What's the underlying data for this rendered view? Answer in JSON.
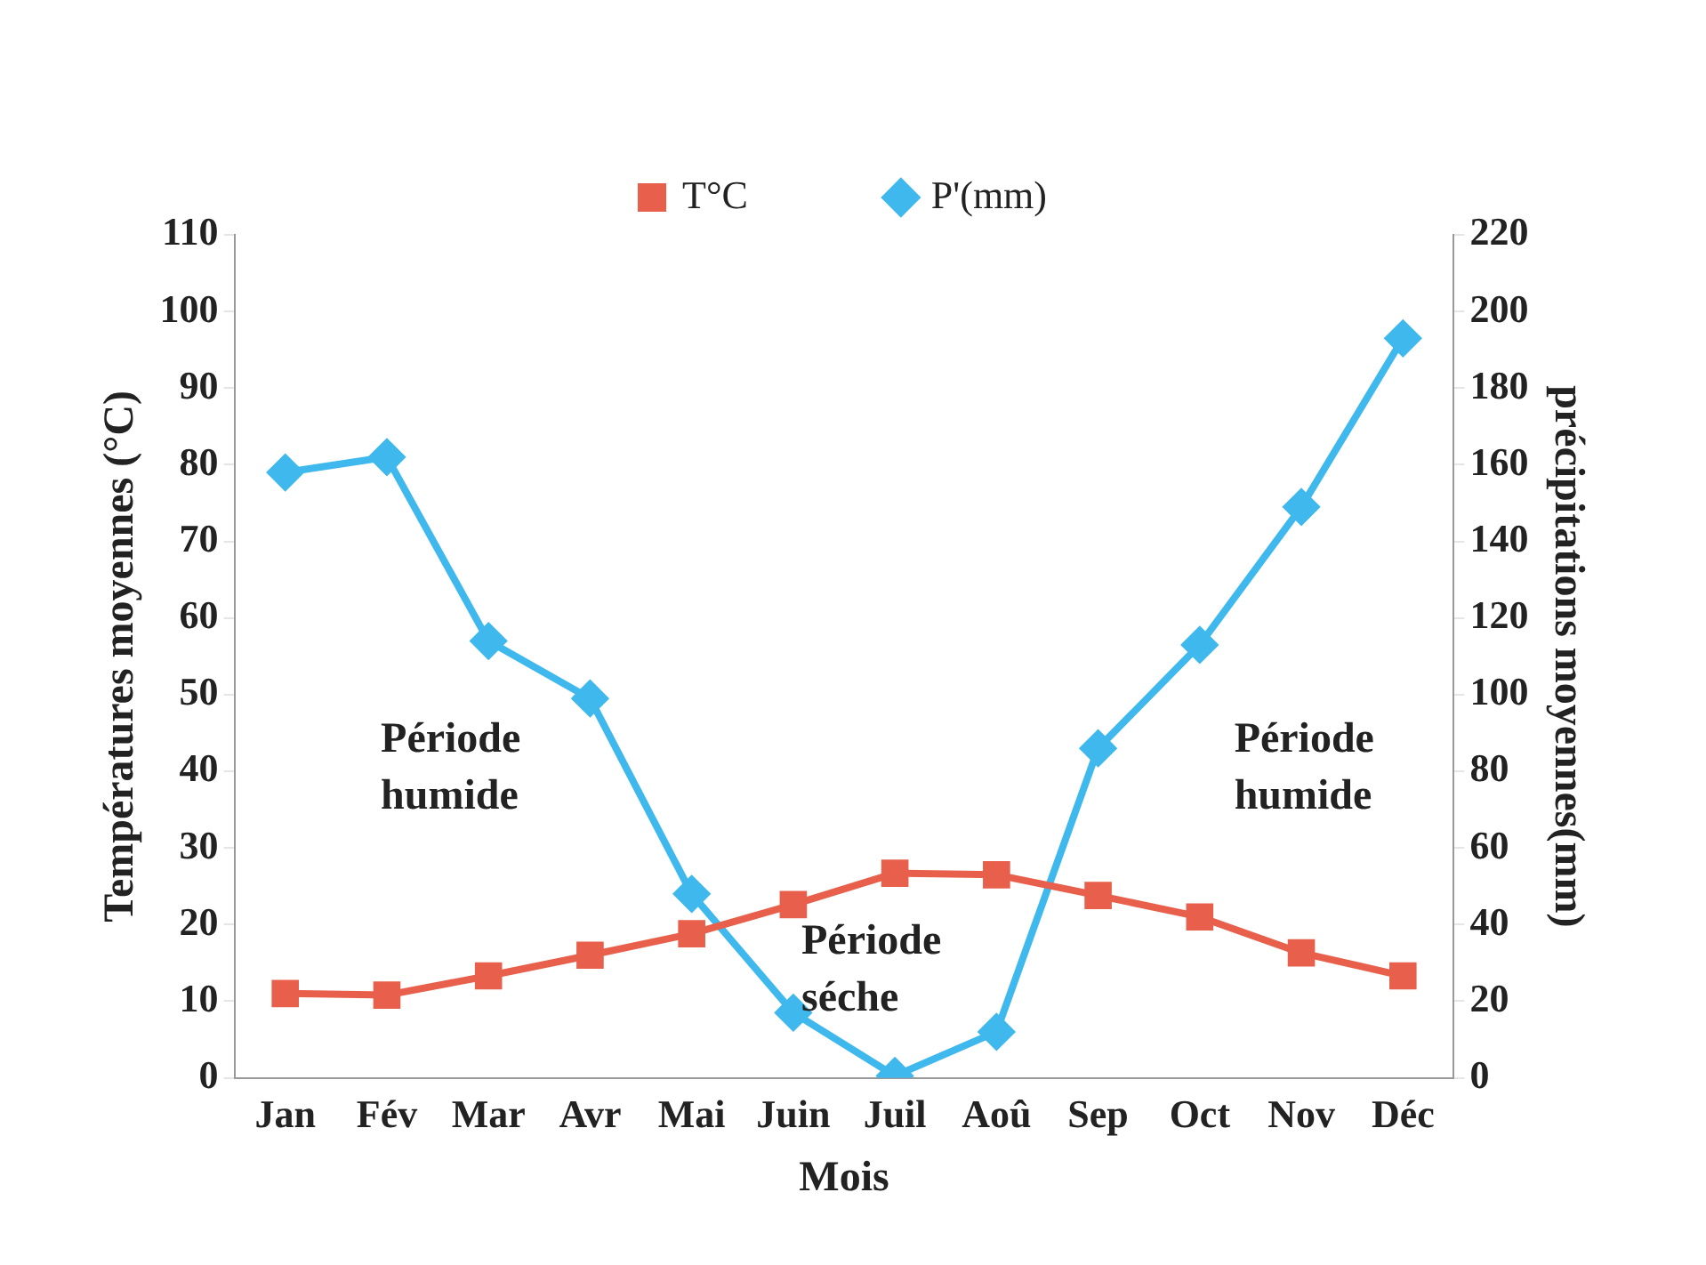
{
  "chart_data": {
    "type": "line",
    "xlabel": "Mois",
    "ylabel": "Températures moyennes (°C)",
    "y2label": "précipitations moyennes(mm)",
    "categories": [
      "Jan",
      "Fév",
      "Mar",
      "Avr",
      "Mai",
      "Juin",
      "Juil",
      "Aoû",
      "Sep",
      "Oct",
      "Nov",
      "Déc"
    ],
    "series": [
      {
        "name": "T°C",
        "color": "#e8604c",
        "marker": "square",
        "values": [
          11,
          10.8,
          13.3,
          16,
          18.8,
          22.6,
          26.7,
          26.5,
          23.8,
          21,
          16.3,
          13.3
        ]
      },
      {
        "name": "P'(mm)",
        "color": "#3fb8ee",
        "marker": "diamond",
        "axis": "y2",
        "values": [
          158,
          162,
          114,
          99,
          48,
          17,
          0.5,
          12,
          86,
          113,
          149,
          193
        ]
      }
    ],
    "ylim": [
      0,
      110
    ],
    "yticks": [
      0,
      10,
      20,
      30,
      40,
      50,
      60,
      70,
      80,
      90,
      100,
      110
    ],
    "y2lim": [
      0,
      220
    ],
    "y2ticks": [
      0,
      20,
      40,
      60,
      80,
      100,
      120,
      140,
      160,
      180,
      200,
      220
    ],
    "annotations": [
      "Période humide",
      "Période séche",
      "Période humide"
    ],
    "legend": "top",
    "grid": false
  }
}
